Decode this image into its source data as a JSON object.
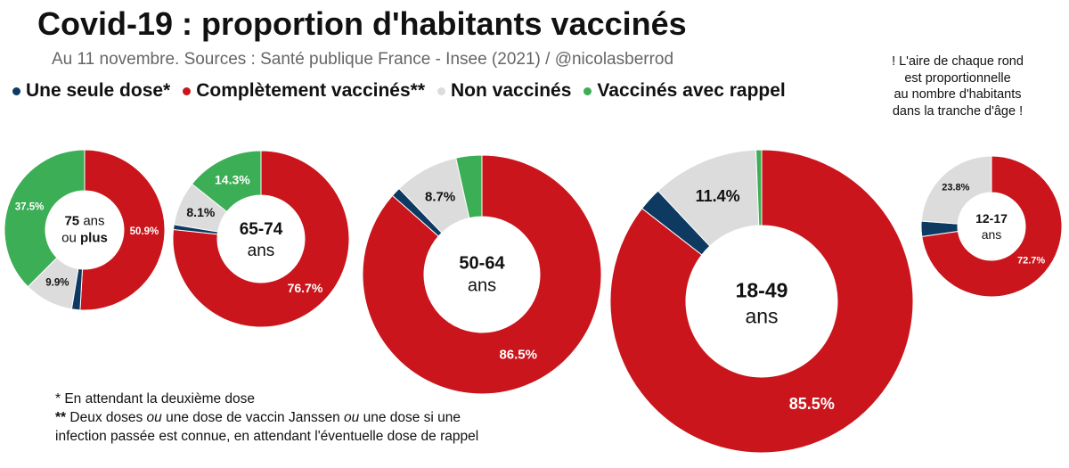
{
  "chart_data": {
    "type": "donut",
    "title": "Covid-19 : proportion d'habitants vaccinés",
    "subtitle": "Au 11 novembre. Sources : Santé publique France - Insee (2021) / @nicolasberrod",
    "note": [
      "! L'aire de chaque rond",
      "est proportionnelle",
      "au nombre d'habitants",
      "dans la tranche d'âge !"
    ],
    "legend": [
      {
        "key": "une_seule_dose",
        "label": "Une seule dose*",
        "color": "#0e3a62"
      },
      {
        "key": "completement",
        "label": "Complètement vaccinés**",
        "color": "#c9151b"
      },
      {
        "key": "non_vaccines",
        "label": "Non vaccinés",
        "color": "#dcdcdc"
      },
      {
        "key": "rappel",
        "label": "Vaccinés avec rappel",
        "color": "#3cae55"
      }
    ],
    "donuts": [
      {
        "age_group": "75+",
        "center_lines": [
          [
            {
              "t": "75",
              "b": true
            },
            {
              "t": " ans",
              "b": false
            }
          ],
          [
            {
              "t": "ou ",
              "b": false
            },
            {
              "t": "plus",
              "b": true
            }
          ]
        ],
        "segments": [
          {
            "key": "completement",
            "value": 50.9,
            "label": "50.9%"
          },
          {
            "key": "une_seule_dose",
            "value": 1.7,
            "label": ""
          },
          {
            "key": "non_vaccines",
            "value": 9.9,
            "label": "9.9%"
          },
          {
            "key": "rappel",
            "value": 37.5,
            "label": "37.5%"
          }
        ]
      },
      {
        "age_group": "65-74",
        "center_lines": [
          [
            {
              "t": "65-74",
              "b": true
            }
          ],
          [
            {
              "t": "ans",
              "b": false
            }
          ]
        ],
        "segments": [
          {
            "key": "completement",
            "value": 76.7,
            "label": "76.7%"
          },
          {
            "key": "une_seule_dose",
            "value": 0.9,
            "label": ""
          },
          {
            "key": "non_vaccines",
            "value": 8.1,
            "label": "8.1%"
          },
          {
            "key": "rappel",
            "value": 14.3,
            "label": "14.3%"
          }
        ]
      },
      {
        "age_group": "50-64",
        "center_lines": [
          [
            {
              "t": "50-64",
              "b": true
            }
          ],
          [
            {
              "t": "ans",
              "b": false
            }
          ]
        ],
        "segments": [
          {
            "key": "completement",
            "value": 86.5,
            "label": "86.5%"
          },
          {
            "key": "une_seule_dose",
            "value": 1.3,
            "label": ""
          },
          {
            "key": "non_vaccines",
            "value": 8.7,
            "label": "8.7%"
          },
          {
            "key": "rappel",
            "value": 3.5,
            "label": ""
          }
        ]
      },
      {
        "age_group": "18-49",
        "center_lines": [
          [
            {
              "t": "18-49",
              "b": true
            }
          ],
          [
            {
              "t": "ans",
              "b": false
            }
          ]
        ],
        "segments": [
          {
            "key": "completement",
            "value": 85.5,
            "label": "85.5%"
          },
          {
            "key": "une_seule_dose",
            "value": 2.5,
            "label": ""
          },
          {
            "key": "non_vaccines",
            "value": 11.4,
            "label": "11.4%"
          },
          {
            "key": "rappel",
            "value": 0.6,
            "label": ""
          }
        ]
      },
      {
        "age_group": "12-17",
        "center_lines": [
          [
            {
              "t": "12-17",
              "b": true
            }
          ],
          [
            {
              "t": "ans",
              "b": false
            }
          ]
        ],
        "segments": [
          {
            "key": "completement",
            "value": 72.7,
            "label": "72.7%"
          },
          {
            "key": "une_seule_dose",
            "value": 3.5,
            "label": ""
          },
          {
            "key": "non_vaccines",
            "value": 23.8,
            "label": "23.8%"
          }
        ]
      }
    ]
  },
  "footnotes": {
    "line1": "* En attendant la deuxième dose",
    "line2_parts": [
      {
        "t": "**",
        "style": "b"
      },
      {
        "t": " Deux doses ",
        "style": ""
      },
      {
        "t": "ou",
        "style": "i"
      },
      {
        "t": " une dose de vaccin Janssen ",
        "style": ""
      },
      {
        "t": "ou",
        "style": "i"
      },
      {
        "t": " une dose si une",
        "style": ""
      }
    ],
    "line3": "infection passée est connue, en attendant l'éventuelle dose de rappel"
  }
}
